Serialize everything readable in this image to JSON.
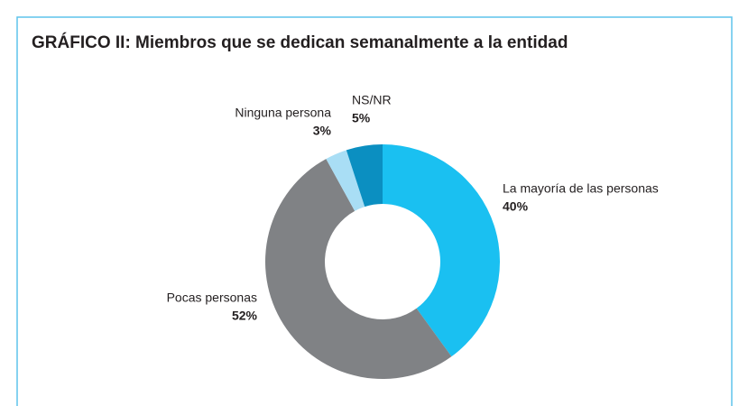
{
  "chart_data": {
    "type": "donut",
    "title": "GRÁFICO II: Miembros que se dedican semanalmente a la entidad",
    "categories": [
      "La mayoría de las personas",
      "Pocas personas",
      "Ninguna persona",
      "NS/NR"
    ],
    "values": [
      40,
      52,
      3,
      5
    ],
    "value_labels": [
      "40%",
      "52%",
      "3%",
      "5%"
    ],
    "colors": [
      "#1ac0f1",
      "#808285",
      "#a9def5",
      "#0b8fc1"
    ]
  }
}
